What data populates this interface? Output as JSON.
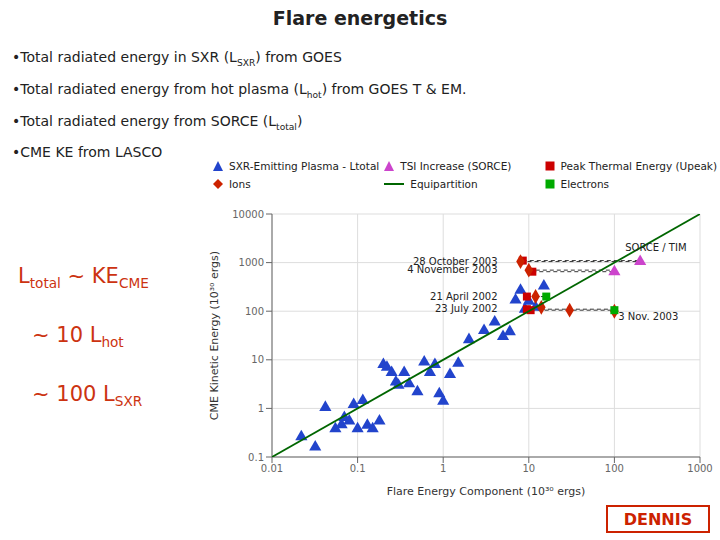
{
  "chart_data": {
    "type": "scatter",
    "title": "Flare energetics",
    "xlabel": "Flare Energy Component (10³⁰ ergs)",
    "ylabel": "CME Kinetic Energy  (10³⁰ ergs)",
    "log": true,
    "grid": true,
    "xlim": [
      0.01,
      1000
    ],
    "ylim": [
      0.1,
      10000
    ],
    "xticks": [
      0.01,
      0.1,
      1,
      10,
      100,
      1000
    ],
    "yticks": [
      0.1,
      1,
      10,
      100,
      1000,
      10000
    ],
    "series": [
      {
        "name": "SXR-Emitting Plasma - Ltotal",
        "color": "#2244cc",
        "marker": "triangle",
        "values": [
          [
            0.022,
            0.26
          ],
          [
            0.032,
            0.16
          ],
          [
            0.042,
            1.05
          ],
          [
            0.055,
            0.38
          ],
          [
            0.065,
            0.46
          ],
          [
            0.07,
            0.65
          ],
          [
            0.08,
            0.55
          ],
          [
            0.09,
            1.2
          ],
          [
            0.1,
            0.38
          ],
          [
            0.115,
            1.45
          ],
          [
            0.13,
            0.45
          ],
          [
            0.15,
            0.38
          ],
          [
            0.18,
            0.55
          ],
          [
            0.2,
            8.0
          ],
          [
            0.22,
            7.0
          ],
          [
            0.25,
            5.5
          ],
          [
            0.28,
            3.5
          ],
          [
            0.3,
            3.0
          ],
          [
            0.35,
            5.5
          ],
          [
            0.4,
            3.2
          ],
          [
            0.5,
            2.2
          ],
          [
            0.6,
            9.0
          ],
          [
            0.7,
            5.5
          ],
          [
            0.8,
            8.0
          ],
          [
            0.9,
            2.0
          ],
          [
            1.0,
            1.4
          ],
          [
            1.2,
            5.0
          ],
          [
            1.5,
            8.5
          ],
          [
            2.0,
            26.0
          ],
          [
            3.0,
            40.0
          ],
          [
            4.0,
            60.0
          ],
          [
            5.0,
            30.0
          ],
          [
            6.0,
            38.0
          ],
          [
            7.0,
            170.0
          ],
          [
            8.0,
            270.0
          ],
          [
            9.0,
            110.0
          ],
          [
            10.0,
            160.0
          ],
          [
            12.0,
            120.0
          ],
          [
            15.0,
            330.0
          ]
        ]
      },
      {
        "name": "TSI Increase (SORCE)",
        "color": "#cc44cc",
        "marker": "triangle",
        "values": [
          [
            200.0,
            1050.0
          ],
          [
            100.0,
            650.0
          ]
        ]
      },
      {
        "name": "Peak Thermal Energy (Upeak)",
        "color": "#cc0000",
        "marker": "square",
        "values": [
          [
            8.5,
            1100.0
          ],
          [
            11.0,
            650.0
          ],
          [
            9.5,
            200.0
          ],
          [
            10.5,
            105.0
          ],
          [
            9.5,
            110.0
          ]
        ]
      },
      {
        "name": "Ions",
        "color": "#cc2200",
        "marker": "diamond",
        "values": [
          [
            8.0,
            1050.0
          ],
          [
            10.0,
            700.0
          ],
          [
            12.0,
            200.0
          ],
          [
            14.0,
            120.0
          ],
          [
            30.0,
            105.0
          ],
          [
            100.0,
            100.0
          ]
        ]
      },
      {
        "name": "Equipartition",
        "type": "line",
        "color": "#006600",
        "values": [
          [
            0.01,
            0.1
          ],
          [
            1000.0,
            10000.0
          ]
        ]
      },
      {
        "name": "Electrons",
        "color": "#00aa00",
        "marker": "square",
        "values": [
          [
            16.0,
            200.0
          ],
          [
            100.0,
            105.0
          ]
        ]
      }
    ],
    "connectors": {
      "color": "#000000",
      "line_style": "dashed",
      "segments": [
        [
          [
            8.5,
            1100.0
          ],
          [
            200.0,
            1100.0
          ]
        ],
        [
          [
            8.0,
            1050.0
          ],
          [
            200.0,
            1050.0
          ]
        ],
        [
          [
            11.0,
            650.0
          ],
          [
            100.0,
            650.0
          ]
        ],
        [
          [
            10.0,
            700.0
          ],
          [
            100.0,
            700.0
          ]
        ],
        [
          [
            9.5,
            200.0
          ],
          [
            16.0,
            200.0
          ]
        ],
        [
          [
            12.0,
            200.0
          ],
          [
            16.0,
            200.0
          ]
        ],
        [
          [
            10.5,
            105.0
          ],
          [
            100.0,
            105.0
          ]
        ],
        [
          [
            9.5,
            110.0
          ],
          [
            100.0,
            110.0
          ]
        ]
      ]
    },
    "annotations": [
      {
        "text": "28 October 2003",
        "x": 4.8,
        "y": 1050.0,
        "position": "left"
      },
      {
        "text": "4 November 2003",
        "x": 4.8,
        "y": 700.0,
        "position": "left"
      },
      {
        "text": "21 April 2002",
        "x": 4.8,
        "y": 200.0,
        "position": "left"
      },
      {
        "text": "23 July 2002",
        "x": 4.8,
        "y": 110.0,
        "position": "left"
      },
      {
        "text": "3 Nov. 2003",
        "x": 105.0,
        "y": 92.0,
        "position": "bottom_right"
      },
      {
        "text": "SORCE / TIM",
        "x": 120.0,
        "y": 2000.0,
        "position": "right"
      }
    ],
    "notes": [
      [
        "•Total radiated energy in SXR (L",
        {
          "sub": "SXR"
        },
        ") from GOES"
      ],
      [
        "•Total radiated energy from hot plasma (L",
        {
          "sub": "hot"
        },
        ") from GOES T & EM."
      ],
      [
        "•Total radiated energy from SORCE (L",
        {
          "sub": "total"
        },
        ")"
      ],
      [
        "•CME KE from LASCO"
      ]
    ],
    "equations": {
      "color": "#cc3311",
      "lines": [
        [
          "L",
          {
            "sub": "total"
          },
          " ~ KE",
          {
            "sub": "CME"
          }
        ],
        [
          "~ 10 L",
          {
            "sub": "hot"
          }
        ],
        [
          "~ 100 L",
          {
            "sub": "SXR"
          }
        ]
      ]
    },
    "badge": {
      "text": "DENNIS",
      "color": "#cc2200"
    }
  }
}
